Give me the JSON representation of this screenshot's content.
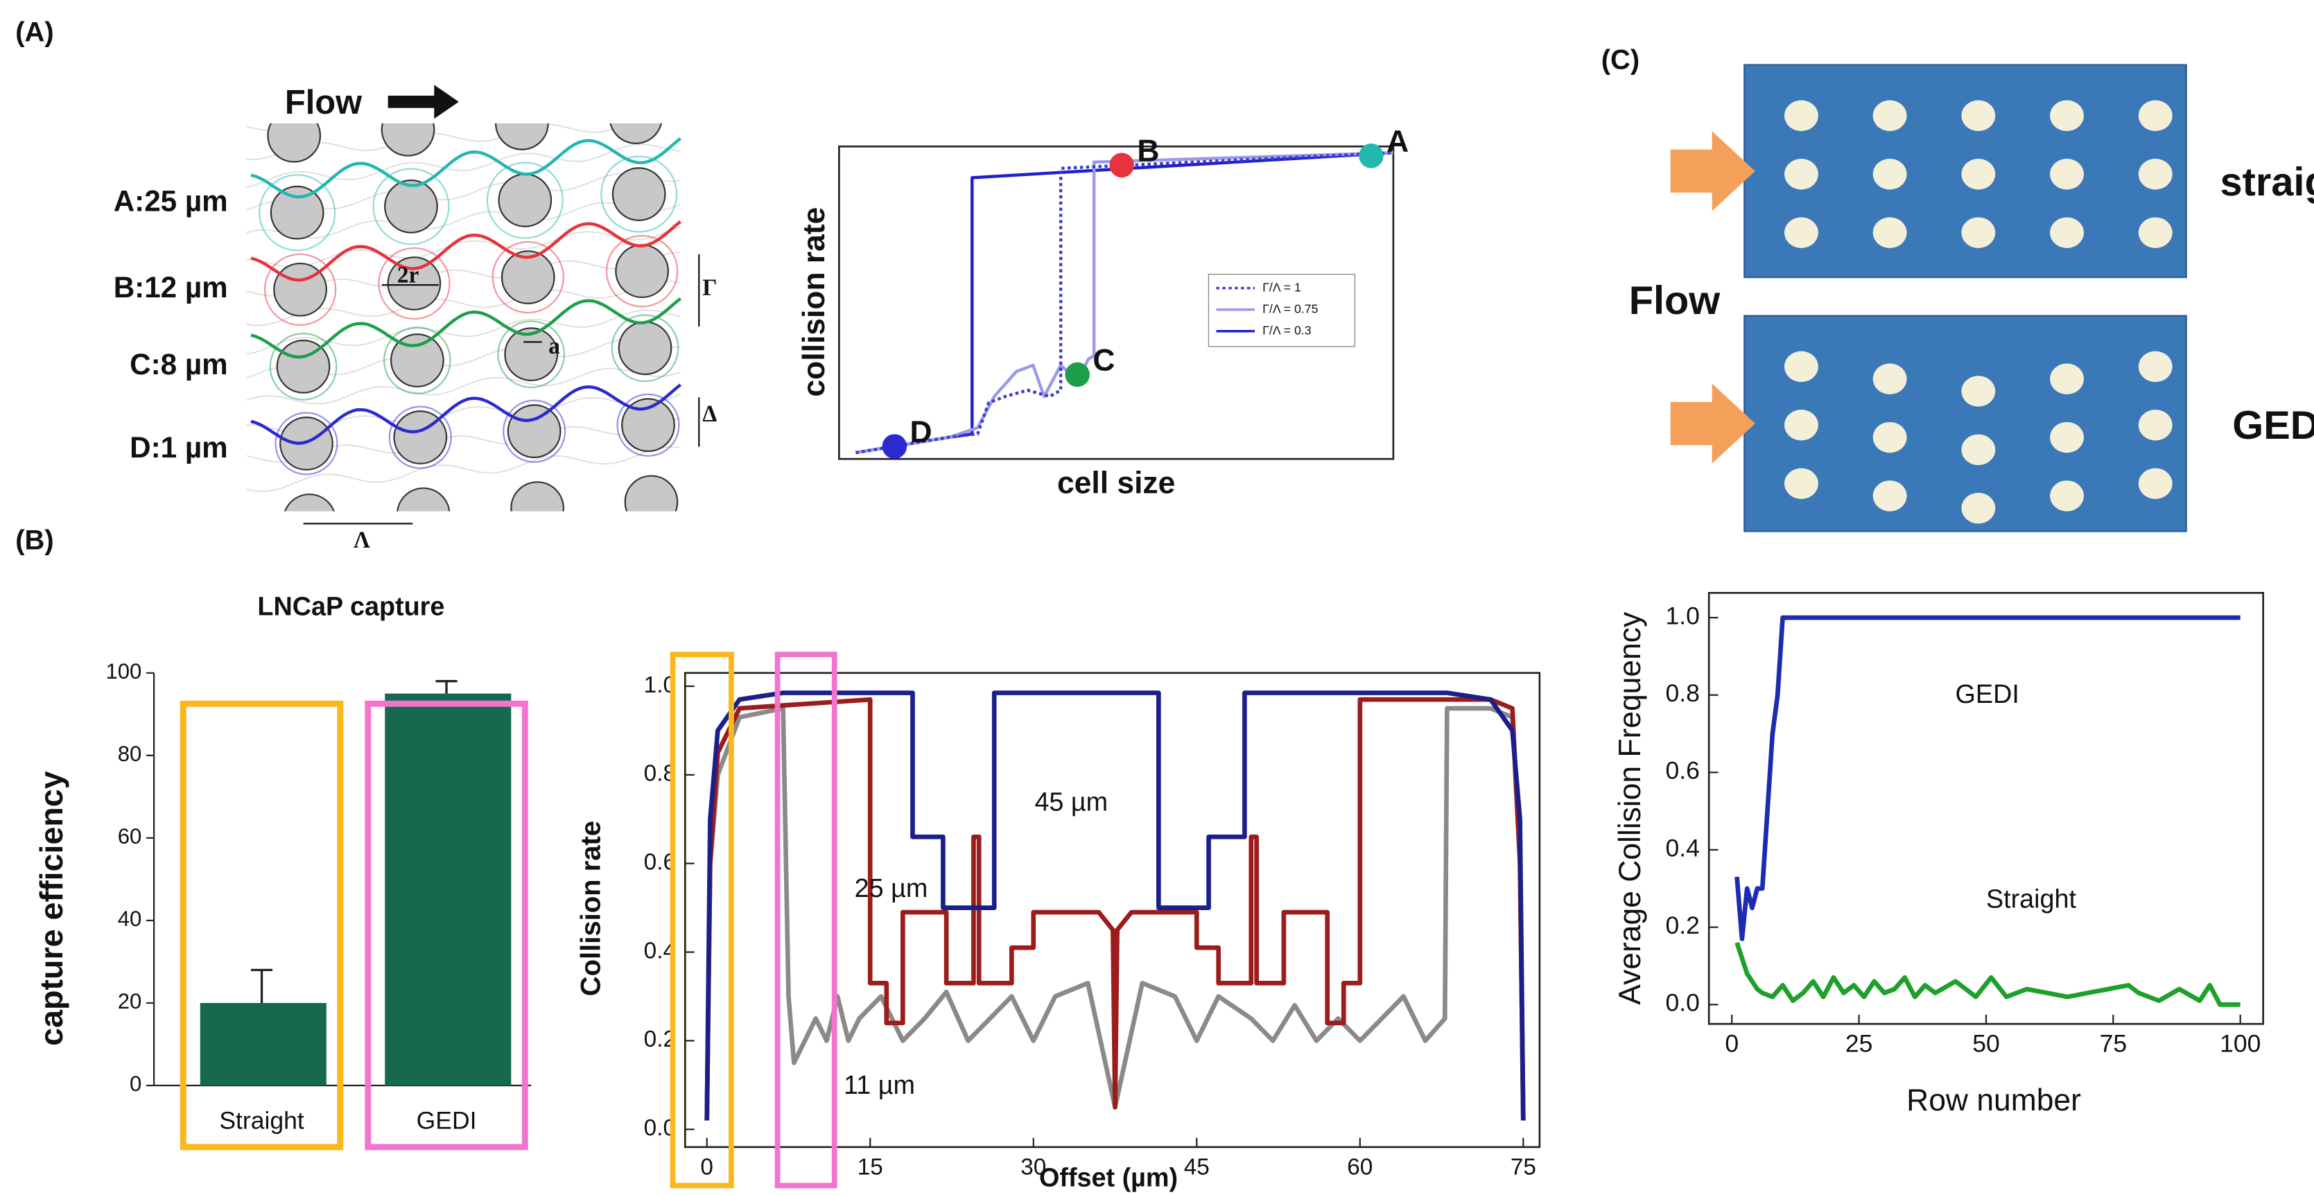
{
  "diagram": {
    "panel_labels": [
      "(A)",
      "(B)",
      "(C)"
    ],
    "flow": "Flow",
    "streams": [
      {
        "label": "A:25 µm",
        "color": "#22b8b0"
      },
      {
        "label": "B:12 µm",
        "color": "#e8323c"
      },
      {
        "label": "C:8 µm",
        "color": "#1e9e4a"
      },
      {
        "label": "D:1 µm",
        "color": "#2a2ad0"
      }
    ],
    "symbols": [
      "2r",
      "a",
      "Γ",
      "Δ",
      "Λ"
    ],
    "c_flow": "Flow",
    "designs": [
      "straight",
      "GEDI"
    ]
  },
  "chart_data": [
    {
      "type": "line",
      "xlabel": "cell size",
      "ylabel": "collision rate",
      "xlim": [
        0,
        1
      ],
      "ylim": [
        0,
        1
      ],
      "frame": true,
      "legend": "right",
      "series": [
        {
          "name": "Γ/Λ = 1",
          "color": "#3b3bd0",
          "style": "dotted",
          "x": [
            0.03,
            0.2,
            0.25,
            0.27,
            0.3,
            0.34,
            0.38,
            0.4,
            0.4,
            1
          ],
          "values": [
            0.02,
            0.07,
            0.08,
            0.18,
            0.2,
            0.22,
            0.2,
            0.22,
            0.93,
            0.98
          ]
        },
        {
          "name": "Γ/Λ = 0.75",
          "color": "#9a9ae8",
          "style": "solid",
          "x": [
            0.03,
            0.2,
            0.25,
            0.28,
            0.32,
            0.35,
            0.37,
            0.4,
            0.43,
            0.45,
            0.46,
            0.46,
            1
          ],
          "values": [
            0.02,
            0.07,
            0.1,
            0.2,
            0.28,
            0.3,
            0.2,
            0.3,
            0.25,
            0.32,
            0.33,
            0.95,
            0.98
          ]
        },
        {
          "name": "Γ/Λ = 0.3",
          "color": "#2020c8",
          "style": "solid",
          "x": [
            0.03,
            0.2,
            0.24,
            0.24,
            1
          ],
          "values": [
            0.02,
            0.07,
            0.08,
            0.9,
            0.98
          ]
        }
      ],
      "points": [
        {
          "label": "D",
          "color": "#2a2ad0",
          "x": 0.1,
          "y": 0.04
        },
        {
          "label": "C",
          "color": "#1e9e4a",
          "x": 0.43,
          "y": 0.27
        },
        {
          "label": "B",
          "color": "#e8323c",
          "x": 0.51,
          "y": 0.94
        },
        {
          "label": "A",
          "color": "#22b8b0",
          "x": 0.96,
          "y": 0.97
        }
      ]
    },
    {
      "type": "bar",
      "title": "LNCaP capture",
      "ylabel": "capture efficiency",
      "categories": [
        "Straight",
        "GEDI"
      ],
      "values": [
        20,
        95
      ],
      "errors": [
        8,
        3
      ],
      "color": "#16694d",
      "ylim": [
        0,
        100
      ],
      "yticks": [
        0,
        20,
        40,
        60,
        80,
        100
      ],
      "highlight_colors": [
        "#f9b81b",
        "#f274cf"
      ]
    },
    {
      "type": "line",
      "xlabel": "Offset (µm)",
      "ylabel": "Collision rate",
      "xlim": [
        -2,
        76.5
      ],
      "ylim": [
        -0.04,
        1.03
      ],
      "frame": true,
      "xticks": [
        0,
        15,
        30,
        45,
        60,
        75
      ],
      "yticks": [
        {
          "value": 0,
          "label": "0.0"
        },
        0.2,
        0.4,
        0.6,
        0.8,
        {
          "value": 1,
          "label": "1.0"
        }
      ],
      "series": [
        {
          "name": "45 µm",
          "color": "#1a1f8c",
          "style": "solid",
          "x": [
            0,
            0.3,
            1,
            3,
            7,
            18.9,
            18.9,
            21.7,
            21.7,
            26.4,
            26.4,
            41.5,
            41.5,
            46.1,
            46.1,
            49.4,
            49.4,
            68,
            72,
            74,
            74.7,
            75
          ],
          "values": [
            0.02,
            0.7,
            0.9,
            0.97,
            0.985,
            0.985,
            0.66,
            0.66,
            0.5,
            0.5,
            0.985,
            0.985,
            0.5,
            0.5,
            0.66,
            0.66,
            0.985,
            0.985,
            0.97,
            0.9,
            0.7,
            0.02
          ]
        },
        {
          "name": "25 µm",
          "color": "#9c1c1c",
          "style": "solid",
          "x": [
            0,
            0.3,
            1,
            3,
            15,
            15,
            16.5,
            16.5,
            18,
            18,
            22,
            22,
            24.5,
            24.5,
            25,
            25,
            28,
            28,
            30,
            30,
            36,
            37.3,
            37.5,
            37.7,
            39,
            45,
            45,
            47,
            47,
            50,
            50,
            50.5,
            50.5,
            53,
            53,
            57,
            57,
            58.5,
            58.5,
            60,
            60,
            72,
            74,
            74.7,
            75
          ],
          "values": [
            0.02,
            0.6,
            0.85,
            0.95,
            0.97,
            0.33,
            0.33,
            0.24,
            0.24,
            0.49,
            0.49,
            0.33,
            0.33,
            0.66,
            0.66,
            0.33,
            0.33,
            0.41,
            0.41,
            0.49,
            0.49,
            0.45,
            0.05,
            0.45,
            0.49,
            0.49,
            0.41,
            0.41,
            0.33,
            0.33,
            0.66,
            0.66,
            0.33,
            0.33,
            0.49,
            0.49,
            0.24,
            0.24,
            0.33,
            0.33,
            0.97,
            0.97,
            0.95,
            0.6,
            0.02
          ]
        },
        {
          "name": "11 µm",
          "color": "#8a8a8a",
          "style": "solid",
          "x": [
            0,
            0.3,
            1,
            3,
            7,
            7.5,
            8,
            9,
            10,
            11,
            12,
            13,
            14,
            16,
            18,
            20,
            22,
            24,
            26,
            28,
            30,
            32,
            35,
            37.5,
            40,
            43,
            45,
            47,
            50,
            52,
            54,
            56,
            58,
            60,
            62,
            64,
            66,
            67.8,
            68,
            72,
            74,
            74.7,
            75
          ],
          "values": [
            0.02,
            0.6,
            0.8,
            0.93,
            0.95,
            0.3,
            0.15,
            0.2,
            0.25,
            0.2,
            0.3,
            0.2,
            0.25,
            0.3,
            0.2,
            0.25,
            0.31,
            0.2,
            0.25,
            0.3,
            0.2,
            0.3,
            0.33,
            0.05,
            0.33,
            0.3,
            0.2,
            0.3,
            0.25,
            0.2,
            0.28,
            0.2,
            0.25,
            0.2,
            0.25,
            0.3,
            0.2,
            0.25,
            0.95,
            0.95,
            0.93,
            0.6,
            0.02
          ]
        }
      ]
    },
    {
      "type": "line",
      "xlabel": "Row number",
      "ylabel": "Average Collision Frequency",
      "xlim": [
        -4.5,
        104.5
      ],
      "ylim": [
        -0.05,
        1.064
      ],
      "frame": true,
      "xticks": [
        0,
        25,
        50,
        75,
        100
      ],
      "yticks": [
        {
          "value": 0,
          "label": "0.0"
        },
        0.2,
        0.4,
        0.6,
        0.8,
        {
          "value": 1,
          "label": "1.0"
        }
      ],
      "series": [
        {
          "name": "GEDI",
          "color": "#1c2bb0",
          "style": "solid",
          "x": [
            1,
            2,
            3,
            4,
            5,
            6,
            7,
            8,
            9,
            10,
            100
          ],
          "values": [
            0.33,
            0.17,
            0.3,
            0.25,
            0.3,
            0.3,
            0.5,
            0.7,
            0.8,
            1.0,
            1.0
          ]
        },
        {
          "name": "Straight",
          "color": "#1ea02a",
          "style": "solid",
          "x": [
            1,
            2,
            3,
            4,
            5,
            6,
            8,
            10,
            12,
            14,
            16,
            18,
            20,
            22,
            24,
            26,
            28,
            30,
            32,
            34,
            36,
            38,
            40,
            44,
            48,
            51,
            54,
            58,
            62,
            66,
            70,
            74,
            78,
            80,
            84,
            88,
            92,
            94,
            96,
            100
          ],
          "values": [
            0.16,
            0.12,
            0.08,
            0.06,
            0.04,
            0.03,
            0.02,
            0.05,
            0.01,
            0.03,
            0.06,
            0.02,
            0.07,
            0.03,
            0.05,
            0.02,
            0.06,
            0.03,
            0.04,
            0.07,
            0.02,
            0.05,
            0.03,
            0.06,
            0.02,
            0.07,
            0.02,
            0.04,
            0.03,
            0.02,
            0.03,
            0.04,
            0.05,
            0.03,
            0.01,
            0.04,
            0.01,
            0.05,
            0,
            0
          ]
        }
      ]
    }
  ]
}
